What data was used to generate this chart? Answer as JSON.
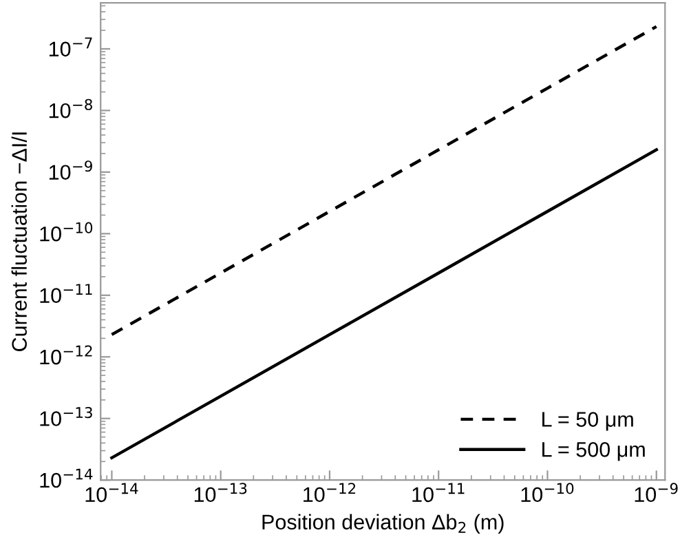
{
  "chart_data": {
    "type": "line",
    "xlabel": "Position deviation Δb$_{2}$ (m)",
    "ylabel": "Current fluctuation −ΔI/I",
    "log": "xy",
    "xlim": [
      7.9e-15,
      1.2e-09
    ],
    "ylim": [
      1e-14,
      5.6e-07
    ],
    "xticks": [
      {
        "value": 1e-14,
        "label": "10$^{−14}$"
      },
      {
        "value": 1e-13,
        "label": "10$^{−13}$"
      },
      {
        "value": 1e-12,
        "label": "10$^{−12}$"
      },
      {
        "value": 1e-11,
        "label": "10$^{−11}$"
      },
      {
        "value": 1e-10,
        "label": "10$^{−10}$"
      },
      {
        "value": 1e-09,
        "label": "10$^{−9}$"
      }
    ],
    "yticks": [
      {
        "value": 1e-14,
        "label": "10$^{−14}$"
      },
      {
        "value": 1e-13,
        "label": "10$^{−13}$"
      },
      {
        "value": 1e-12,
        "label": "10$^{−12}$"
      },
      {
        "value": 1e-11,
        "label": "10$^{−11}$"
      },
      {
        "value": 1e-10,
        "label": "10$^{−10}$"
      },
      {
        "value": 1e-09,
        "label": "10$^{−9}$"
      },
      {
        "value": 1e-08,
        "label": "10$^{−8}$"
      },
      {
        "value": 1e-07,
        "label": "10$^{−7}$"
      }
    ],
    "x": [
      1e-14,
      1e-13,
      1e-12,
      1e-11,
      1e-10,
      1e-09
    ],
    "series": [
      {
        "name": "L = 50 μm",
        "color": "#000000",
        "line_style": "dashed",
        "values": [
          2.3e-12,
          2.3e-11,
          2.3e-10,
          2.3e-09,
          2.3e-08,
          2.3e-07
        ]
      },
      {
        "name": "L = 500 μm",
        "color": "#000000",
        "line_style": "solid",
        "values": [
          2.3e-14,
          2.3e-13,
          2.3e-12,
          2.3e-11,
          2.3e-10,
          2.3e-09
        ]
      }
    ],
    "grid": false,
    "legend": "bottom right",
    "marker": "none"
  }
}
